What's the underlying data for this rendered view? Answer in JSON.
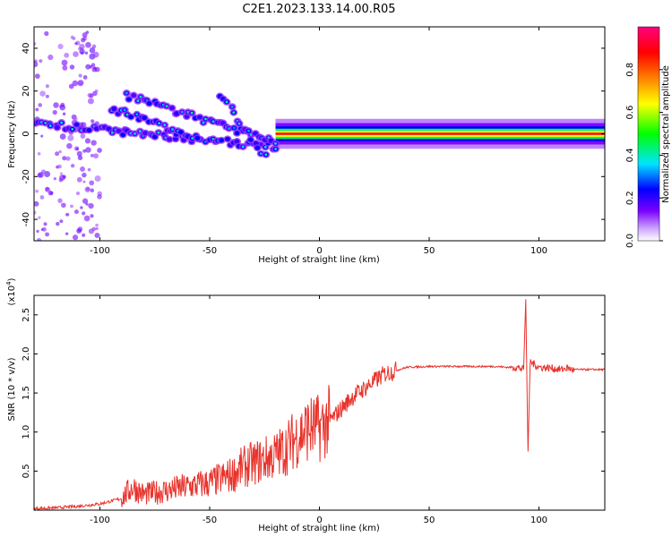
{
  "figure": {
    "title": "C2E1.2023.133.14.00.R05"
  },
  "chart_data": [
    {
      "type": "heatmap",
      "xlabel": "Height of straight line (km)",
      "ylabel": "Frequency (Hz)",
      "xlim": [
        -130,
        130
      ],
      "ylim": [
        -50,
        50
      ],
      "x_ticks": [
        -100,
        -50,
        0,
        50,
        100
      ],
      "y_ticks": [
        -40,
        -20,
        0,
        20,
        40
      ],
      "colorbar": {
        "label": "Normalized spectral amplitude",
        "range": [
          0,
          1
        ],
        "ticks": [
          "0.0",
          "0.2",
          "0.4",
          "0.6",
          "0.8"
        ],
        "colormap": [
          "#ffffff",
          "#7b00ff",
          "#0000ff",
          "#00e5ff",
          "#00ff00",
          "#ffff00",
          "#ff8000",
          "#ff0000",
          "#ff0080"
        ]
      },
      "features": [
        {
          "x_range": [
            -130,
            -20
          ],
          "freq_start": 5,
          "freq_end": -6
        },
        {
          "x_range": [
            -88,
            -20
          ],
          "freq_start": 18,
          "freq_end": -4
        },
        {
          "x_range": [
            -95,
            -55
          ],
          "freq_start": 12,
          "freq_end": -2
        },
        {
          "x_range": [
            -45,
            -25
          ],
          "freq_start": 18,
          "freq_end": -10
        },
        {
          "x_range": [
            -20,
            130
          ],
          "freq": 0,
          "peak_amplitude": 0.9
        }
      ]
    },
    {
      "type": "line",
      "xlabel": "Height of straight line (km)",
      "ylabel": "SNR (10 * v/v)",
      "y_multiplier": "(x10",
      "y_multiplier_exp": "4",
      "y_multiplier_close": ")",
      "xlim": [
        -130,
        130
      ],
      "ylim": [
        0,
        2.75
      ],
      "x_ticks": [
        -100,
        -50,
        0,
        50,
        100
      ],
      "y_ticks": [
        "0.5",
        "1.0",
        "1.5",
        "2.0",
        "2.5"
      ],
      "line_color": "#e8332c",
      "series": [
        {
          "x": [
            -130,
            -120,
            -110,
            -100,
            -90,
            -85,
            -80,
            -70,
            -60,
            -50,
            -40,
            -35,
            -30,
            -25,
            -20,
            -15,
            -10,
            -5,
            0,
            5,
            10,
            15,
            20,
            25,
            30,
            40,
            50,
            60,
            70,
            80,
            85,
            90,
            93,
            94,
            95,
            96,
            100,
            105,
            110,
            113,
            115,
            120,
            130
          ],
          "y": [
            0.02,
            0.03,
            0.05,
            0.08,
            0.15,
            0.3,
            0.2,
            0.25,
            0.3,
            0.35,
            0.45,
            0.55,
            0.6,
            0.65,
            0.7,
            0.8,
            0.95,
            1.05,
            1.05,
            1.15,
            1.3,
            1.45,
            1.55,
            1.65,
            1.75,
            1.83,
            1.84,
            1.84,
            1.84,
            1.84,
            1.83,
            1.83,
            1.8,
            2.7,
            0.75,
            1.9,
            1.83,
            1.82,
            1.8,
            1.82,
            1.8,
            1.8,
            1.8
          ]
        }
      ]
    }
  ]
}
